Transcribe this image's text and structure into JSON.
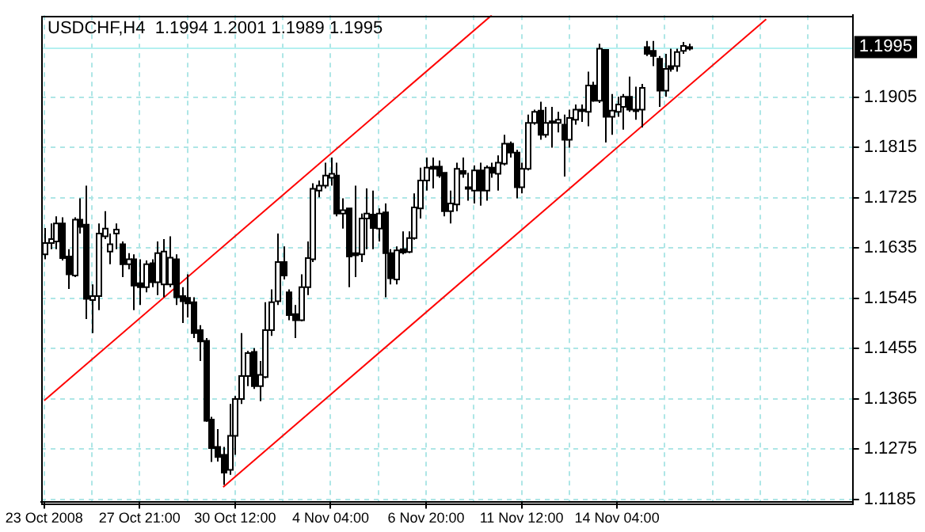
{
  "chart_data": {
    "type": "candlestick",
    "title": "USDCHF,H4  1.1994 1.2001 1.1989 1.1995",
    "categories": [
      "23 Oct 2008",
      null,
      null,
      null,
      null,
      null,
      null,
      null,
      null,
      null,
      null,
      null,
      null,
      null,
      null,
      null,
      "27 Oct 21:00",
      null,
      null,
      null,
      null,
      null,
      null,
      null,
      null,
      null,
      null,
      null,
      null,
      null,
      null,
      null,
      "30 Oct 12:00",
      null,
      null,
      null,
      null,
      null,
      null,
      null,
      null,
      null,
      null,
      null,
      null,
      null,
      null,
      null,
      "4 Nov 04:00",
      null,
      null,
      null,
      null,
      null,
      null,
      null,
      null,
      null,
      null,
      null,
      null,
      null,
      null,
      null,
      "6 Nov 20:00",
      null,
      null,
      null,
      null,
      null,
      null,
      null,
      null,
      null,
      null,
      null,
      null,
      null,
      null,
      null,
      "11 Nov 12:00",
      null,
      null,
      null,
      null,
      null,
      null,
      null,
      null,
      null,
      null,
      null,
      null,
      null,
      null,
      null,
      "14 Nov 04:00",
      null,
      null,
      null,
      null,
      null,
      null,
      null,
      null,
      null,
      null,
      null,
      null,
      null,
      null,
      null,
      null,
      null,
      null,
      null,
      null,
      null,
      null,
      null,
      null,
      null,
      null,
      null,
      null,
      null,
      null,
      null,
      null,
      null,
      null,
      null,
      null,
      null,
      null,
      null
    ],
    "ohlc": [
      [
        1.1624,
        1.1671,
        1.1615,
        1.1644
      ],
      [
        1.1644,
        1.1679,
        1.1633,
        1.1651
      ],
      [
        1.1647,
        1.1692,
        1.1633,
        1.1679
      ],
      [
        1.1679,
        1.169,
        1.1613,
        1.1617
      ],
      [
        1.162,
        1.1633,
        1.1562,
        1.1588
      ],
      [
        1.1586,
        1.169,
        1.1583,
        1.1686
      ],
      [
        1.1686,
        1.1724,
        1.1661,
        1.1673
      ],
      [
        1.1677,
        1.1747,
        1.1508,
        1.1544
      ],
      [
        1.1542,
        1.157,
        1.1483,
        1.1549
      ],
      [
        1.1549,
        1.1679,
        1.1524,
        1.1661
      ],
      [
        1.1656,
        1.1701,
        1.1651,
        1.167
      ],
      [
        1.1629,
        1.1661,
        1.1606,
        1.1642
      ],
      [
        1.1661,
        1.1679,
        1.1633,
        1.1668
      ],
      [
        1.1642,
        1.1647,
        1.1583,
        1.1606
      ],
      [
        1.1606,
        1.1626,
        1.1597,
        1.1615
      ],
      [
        1.1615,
        1.1624,
        1.1524,
        1.1568
      ],
      [
        1.1572,
        1.1615,
        1.1533,
        1.1565
      ],
      [
        1.1565,
        1.1613,
        1.1556,
        1.1606
      ],
      [
        1.1608,
        1.1615,
        1.1565,
        1.1574
      ],
      [
        1.1574,
        1.1647,
        1.1551,
        1.1626
      ],
      [
        1.157,
        1.1651,
        1.1547,
        1.1629
      ],
      [
        1.157,
        1.1656,
        1.1565,
        1.1618
      ],
      [
        1.1615,
        1.1624,
        1.1533,
        1.1547
      ],
      [
        1.1549,
        1.1565,
        1.1501,
        1.154
      ],
      [
        1.1546,
        1.1588,
        1.1511,
        1.1536
      ],
      [
        1.1538,
        1.1547,
        1.1474,
        1.1483
      ],
      [
        1.1488,
        1.1497,
        1.1433,
        1.1468
      ],
      [
        1.1469,
        1.1474,
        1.1324,
        1.1326
      ],
      [
        1.1328,
        1.1333,
        1.1252,
        1.1277
      ],
      [
        1.1279,
        1.1311,
        1.1253,
        1.1261
      ],
      [
        1.1265,
        1.1279,
        1.1211,
        1.1233
      ],
      [
        1.1238,
        1.1356,
        1.1229,
        1.1299
      ],
      [
        1.1299,
        1.137,
        1.1265,
        1.1365
      ],
      [
        1.1365,
        1.1483,
        1.1356,
        1.1406
      ],
      [
        1.1406,
        1.1451,
        1.1388,
        1.1447
      ],
      [
        1.1449,
        1.1456,
        1.1383,
        1.1388
      ],
      [
        1.1388,
        1.1433,
        1.1361,
        1.1408
      ],
      [
        1.1404,
        1.1538,
        1.1402,
        1.1488
      ],
      [
        1.1488,
        1.1561,
        1.1478,
        1.1538
      ],
      [
        1.154,
        1.1661,
        1.1533,
        1.161
      ],
      [
        1.161,
        1.1638,
        1.1579,
        1.1586
      ],
      [
        1.1556,
        1.1561,
        1.1506,
        1.1515
      ],
      [
        1.1517,
        1.1533,
        1.1474,
        1.1506
      ],
      [
        1.1506,
        1.1588,
        1.1504,
        1.1565
      ],
      [
        1.1565,
        1.1647,
        1.1551,
        1.1617
      ],
      [
        1.1615,
        1.1751,
        1.161,
        1.1741
      ],
      [
        1.1738,
        1.1756,
        1.1726,
        1.1747
      ],
      [
        1.1747,
        1.1788,
        1.1742,
        1.1765
      ],
      [
        1.1761,
        1.1797,
        1.1747,
        1.1768
      ],
      [
        1.1765,
        1.1788,
        1.1692,
        1.1697
      ],
      [
        1.1697,
        1.1724,
        1.167,
        1.1703
      ],
      [
        1.1706,
        1.1706,
        1.1565,
        1.162
      ],
      [
        1.1626,
        1.1747,
        1.1583,
        1.1622
      ],
      [
        1.1624,
        1.1697,
        1.161,
        1.1688
      ],
      [
        1.1688,
        1.1742,
        1.1633,
        1.1697
      ],
      [
        1.1695,
        1.1738,
        1.1633,
        1.1671
      ],
      [
        1.167,
        1.1706,
        1.1647,
        1.1697
      ],
      [
        1.1699,
        1.1715,
        1.1547,
        1.1626
      ],
      [
        1.1626,
        1.1633,
        1.157,
        1.1581
      ],
      [
        1.1579,
        1.1638,
        1.157,
        1.1631
      ],
      [
        1.1633,
        1.1665,
        1.1624,
        1.1627
      ],
      [
        1.1628,
        1.1665,
        1.1626,
        1.1653
      ],
      [
        1.1653,
        1.1733,
        1.165,
        1.1708
      ],
      [
        1.1706,
        1.1779,
        1.1688,
        1.1756
      ],
      [
        1.1756,
        1.1797,
        1.1738,
        1.1779
      ],
      [
        1.1781,
        1.1797,
        1.1742,
        1.1777
      ],
      [
        1.1781,
        1.1792,
        1.1761,
        1.1765
      ],
      [
        1.177,
        1.177,
        1.1692,
        1.1701
      ],
      [
        1.1701,
        1.1738,
        1.1679,
        1.1715
      ],
      [
        1.1713,
        1.1788,
        1.1701,
        1.1777
      ],
      [
        1.1773,
        1.1797,
        1.1761,
        1.1768
      ],
      [
        1.1742,
        1.177,
        1.172,
        1.1744
      ],
      [
        1.1738,
        1.1783,
        1.1715,
        1.1774
      ],
      [
        1.1774,
        1.1788,
        1.1711,
        1.1738
      ],
      [
        1.1738,
        1.1783,
        1.172,
        1.1779
      ],
      [
        1.1779,
        1.1788,
        1.1761,
        1.177
      ],
      [
        1.1768,
        1.1801,
        1.1738,
        1.1788
      ],
      [
        1.1786,
        1.1838,
        1.1783,
        1.1822
      ],
      [
        1.1822,
        1.1826,
        1.1797,
        1.1806
      ],
      [
        1.1806,
        1.1811,
        1.1724,
        1.1744
      ],
      [
        1.1744,
        1.1788,
        1.1733,
        1.1777
      ],
      [
        1.1777,
        1.1874,
        1.1774,
        1.1859
      ],
      [
        1.1859,
        1.1883,
        1.1856,
        1.1879
      ],
      [
        1.1881,
        1.1897,
        1.1829,
        1.1838
      ],
      [
        1.1838,
        1.1888,
        1.1833,
        1.1859
      ],
      [
        1.1862,
        1.1888,
        1.1815,
        1.1859
      ],
      [
        1.1859,
        1.1879,
        1.1842,
        1.1865
      ],
      [
        1.1856,
        1.1874,
        1.1763,
        1.1829
      ],
      [
        1.1829,
        1.1883,
        1.1815,
        1.1868
      ],
      [
        1.1865,
        1.1892,
        1.1856,
        1.1883
      ],
      [
        1.1882,
        1.1892,
        1.1861,
        1.1883
      ],
      [
        1.1879,
        1.1951,
        1.1853,
        1.1926
      ],
      [
        1.1926,
        1.1933,
        1.1897,
        1.1899
      ],
      [
        1.1899,
        1.2001,
        1.1895,
        1.1992
      ],
      [
        1.199,
        1.199,
        1.1824,
        1.187
      ],
      [
        1.187,
        1.1911,
        1.1838,
        1.1881
      ],
      [
        1.1879,
        1.1906,
        1.187,
        1.1892
      ],
      [
        1.1888,
        1.1911,
        1.1847,
        1.1906
      ],
      [
        1.1906,
        1.1942,
        1.1879,
        1.1883
      ],
      [
        1.1882,
        1.1924,
        1.1865,
        1.1883
      ],
      [
        1.1883,
        1.1929,
        1.1851,
        1.1922
      ],
      [
        1.1995,
        1.2006,
        1.1979,
        1.1983
      ],
      [
        1.1988,
        1.2006,
        1.1961,
        1.1979
      ],
      [
        1.1974,
        1.1979,
        1.1888,
        1.1917
      ],
      [
        1.1917,
        1.1983,
        1.1906,
        1.1956
      ],
      [
        1.1961,
        1.1992,
        1.1951,
        1.1956
      ],
      [
        1.1961,
        1.1992,
        1.1951,
        1.1986
      ],
      [
        1.1988,
        1.2004,
        1.1983,
        1.1997
      ],
      [
        1.1994,
        1.2001,
        1.1989,
        1.1995
      ],
      null,
      null,
      null,
      null,
      null,
      null,
      null,
      null,
      null,
      null,
      null,
      null,
      null,
      null,
      null,
      null,
      null,
      null,
      null,
      null,
      null,
      null,
      null,
      null,
      null,
      null,
      null
    ],
    "series": [
      {
        "type": "line",
        "color": "#ff0000",
        "values": [
          1.1362,
          null,
          null,
          null,
          null,
          null,
          null,
          null,
          null,
          null,
          null,
          null,
          null,
          null,
          null,
          null,
          null,
          null,
          null,
          null,
          null,
          null,
          null,
          null,
          null,
          null,
          null,
          null,
          null,
          null,
          null,
          null,
          null,
          null,
          null,
          null,
          null,
          null,
          null,
          null,
          null,
          null,
          null,
          null,
          null,
          null,
          null,
          null,
          null,
          null,
          null,
          null,
          null,
          null,
          null,
          null,
          null,
          null,
          null,
          null,
          null,
          null,
          null,
          null,
          null,
          null,
          null,
          null,
          null,
          null,
          null,
          null,
          null,
          null,
          null,
          1.2052,
          null,
          null,
          null,
          null,
          null,
          null,
          null,
          null,
          null,
          null,
          null,
          null,
          null,
          null,
          null,
          null,
          null,
          null,
          null,
          null,
          null,
          null,
          null,
          null,
          null,
          null,
          null,
          null,
          null,
          null,
          null,
          null,
          null,
          null,
          null,
          null,
          null,
          null,
          null,
          null,
          null,
          null,
          null,
          null,
          null,
          null,
          null,
          null,
          null,
          null,
          null,
          null,
          null,
          null,
          null,
          null,
          null,
          null,
          null,
          null
        ]
      },
      {
        "type": "line",
        "color": "#ff0000",
        "values": [
          null,
          null,
          null,
          null,
          null,
          null,
          null,
          null,
          null,
          null,
          null,
          null,
          null,
          null,
          null,
          null,
          null,
          null,
          null,
          null,
          null,
          null,
          null,
          null,
          null,
          null,
          null,
          null,
          null,
          null,
          1.1207,
          null,
          null,
          null,
          null,
          null,
          null,
          null,
          null,
          null,
          null,
          null,
          null,
          null,
          null,
          null,
          null,
          null,
          null,
          null,
          null,
          null,
          null,
          null,
          null,
          null,
          null,
          null,
          null,
          null,
          null,
          null,
          null,
          null,
          null,
          null,
          null,
          null,
          null,
          null,
          null,
          null,
          null,
          null,
          null,
          null,
          null,
          null,
          null,
          null,
          null,
          null,
          null,
          null,
          null,
          null,
          null,
          null,
          null,
          null,
          null,
          null,
          null,
          null,
          null,
          null,
          null,
          null,
          null,
          null,
          null,
          null,
          null,
          null,
          null,
          null,
          null,
          null,
          null,
          null,
          null,
          null,
          null,
          null,
          null,
          null,
          null,
          null,
          null,
          null,
          null,
          1.2045,
          null,
          null,
          null,
          null,
          null,
          null,
          null,
          null,
          null,
          null,
          null,
          null,
          null,
          null
        ]
      }
    ],
    "ylim": [
      1.118,
      1.2052
    ],
    "yticks": [
      1.1185,
      1.1275,
      1.1365,
      1.1455,
      1.1545,
      1.1635,
      1.1725,
      1.1815,
      1.1905
    ],
    "grid": true,
    "ref_lines": [
      {
        "axis": "y",
        "value": 1.1995,
        "label": "1.1995",
        "color": "#b4f0f0"
      }
    ]
  }
}
